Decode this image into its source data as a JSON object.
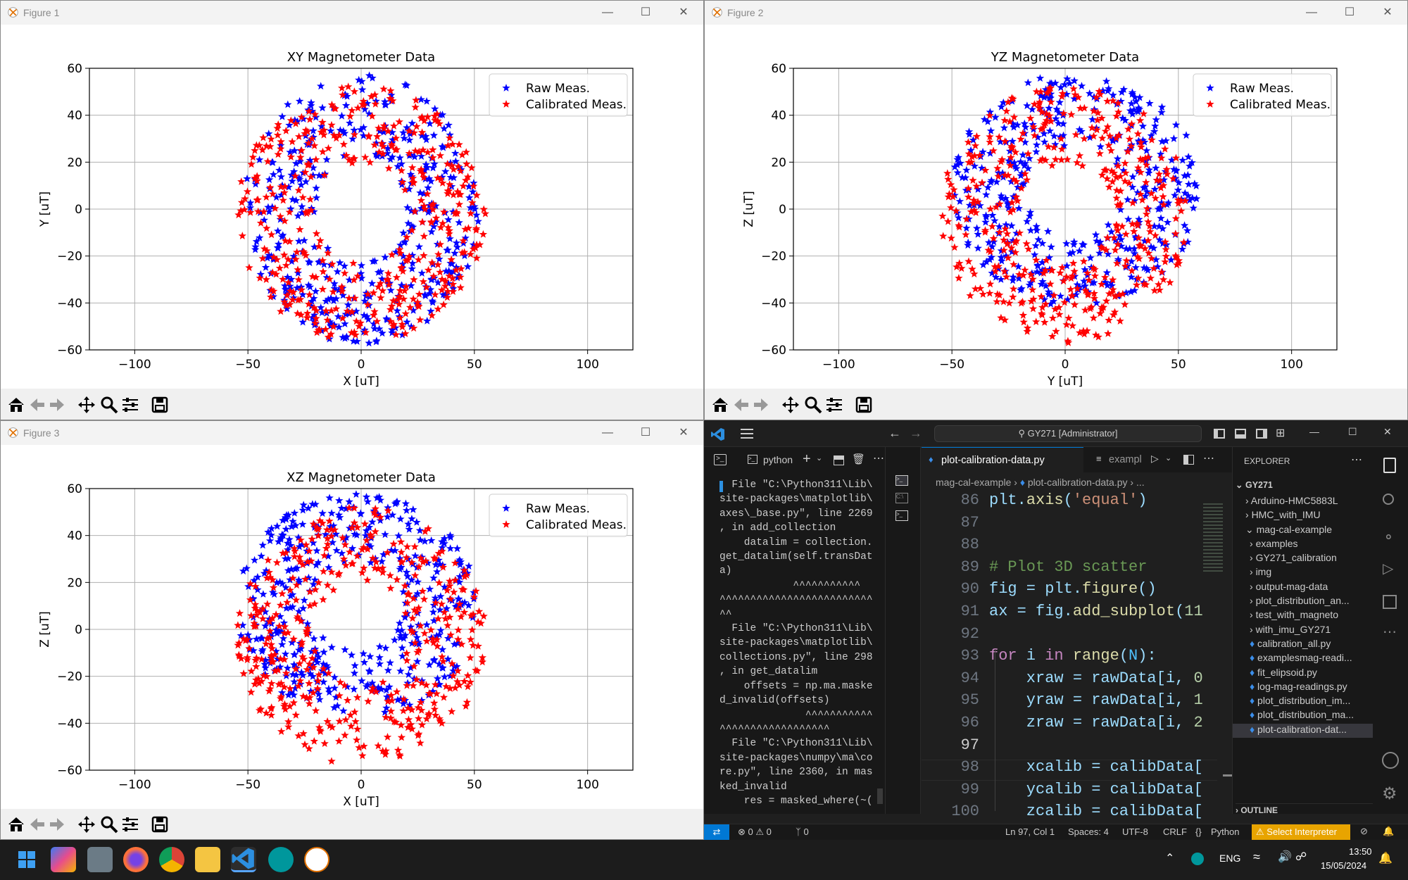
{
  "figures": [
    {
      "window_title": "Figure 1",
      "chart_data": {
        "type": "scatter",
        "title": "XY Magnetometer Data",
        "xlabel": "X [uT]",
        "ylabel": "Y [uT]",
        "xlim": [
          -120,
          120
        ],
        "ylim": [
          -60,
          60
        ],
        "xticks": [
          -100,
          -50,
          0,
          50,
          100
        ],
        "yticks": [
          60,
          40,
          20,
          0,
          -20,
          -40,
          -60
        ],
        "grid": true,
        "legend": "top-right",
        "series": [
          {
            "name": "Raw Meas.",
            "color": "#0000ff",
            "center": [
              0,
              0
            ],
            "radius": [
              52,
              58
            ]
          },
          {
            "name": "Calibrated Meas.",
            "color": "#ff0000",
            "center": [
              0,
              -2
            ],
            "radius": [
              55,
              55
            ]
          }
        ]
      }
    },
    {
      "window_title": "Figure 2",
      "chart_data": {
        "type": "scatter",
        "title": "YZ Magnetometer Data",
        "xlabel": "Y [uT]",
        "ylabel": "Z [uT]",
        "xlim": [
          -120,
          120
        ],
        "ylim": [
          -60,
          60
        ],
        "xticks": [
          -100,
          -50,
          0,
          50,
          100
        ],
        "yticks": [
          60,
          40,
          20,
          0,
          -20,
          -40,
          -60
        ],
        "grid": true,
        "legend": "top-right",
        "series": [
          {
            "name": "Raw Meas.",
            "color": "#0000ff",
            "center": [
              5,
              8
            ],
            "radius": [
              55,
              50
            ]
          },
          {
            "name": "Calibrated Meas.",
            "color": "#ff0000",
            "center": [
              0,
              -2
            ],
            "radius": [
              55,
              55
            ]
          }
        ]
      }
    },
    {
      "window_title": "Figure 3",
      "chart_data": {
        "type": "scatter",
        "title": "XZ Magnetometer Data",
        "xlabel": "X [uT]",
        "ylabel": "Z [uT]",
        "xlim": [
          -120,
          120
        ],
        "ylim": [
          -60,
          60
        ],
        "xticks": [
          -100,
          -50,
          0,
          50,
          100
        ],
        "yticks": [
          60,
          40,
          20,
          0,
          -20,
          -40,
          -60
        ],
        "grid": true,
        "legend": "top-right",
        "series": [
          {
            "name": "Raw Meas.",
            "color": "#0000ff",
            "center": [
              -2,
              10
            ],
            "radius": [
              53,
              48
            ]
          },
          {
            "name": "Calibrated Meas.",
            "color": "#ff0000",
            "center": [
              0,
              -3
            ],
            "radius": [
              55,
              55
            ]
          }
        ]
      }
    }
  ],
  "colors": {
    "raw": "#0000ff",
    "calib": "#ff0000",
    "vscode_accent": "#0078d4",
    "status_warn": "#e8a400"
  },
  "vscode": {
    "search": "GY271 [Administrator]",
    "terminal_tab": "python",
    "editor_tab_active": "plot-calibration-data.py",
    "editor_tab_other": "exampl",
    "breadcrumb": [
      "mag-cal-example",
      "plot-calibration-data.py",
      "..."
    ],
    "terminal_lines": [
      "  File \"C:\\Python311\\Lib\\",
      "site-packages\\matplotlib\\",
      "axes\\_base.py\", line 2269",
      ", in add_collection",
      "    datalim = collection.",
      "get_datalim(self.transDat",
      "a)",
      "            ^^^^^^^^^^^",
      "^^^^^^^^^^^^^^^^^^^^^^^^^",
      "^^",
      "  File \"C:\\Python311\\Lib\\",
      "site-packages\\matplotlib\\",
      "collections.py\", line 298",
      ", in get_datalim",
      "    offsets = np.ma.maske",
      "d_invalid(offsets)",
      "              ^^^^^^^^^^^",
      "^^^^^^^^^^^^^^^^^^",
      "  File \"C:\\Python311\\Lib\\",
      "site-packages\\numpy\\ma\\co",
      "re.py\", line 2360, in mas",
      "ked_invalid",
      "    res = masked_where(~("
    ],
    "code_lines": [
      {
        "n": "86",
        "code": "plt.axis('equal')"
      },
      {
        "n": "87",
        "code": ""
      },
      {
        "n": "88",
        "code": ""
      },
      {
        "n": "89",
        "code": "# Plot 3D scatter"
      },
      {
        "n": "90",
        "code": "fig = plt.figure()"
      },
      {
        "n": "91",
        "code": "ax = fig.add_subplot(11"
      },
      {
        "n": "92",
        "code": ""
      },
      {
        "n": "93",
        "code": "for i in range(N):"
      },
      {
        "n": "94",
        "code": "    xraw = rawData[i, 0"
      },
      {
        "n": "95",
        "code": "    yraw = rawData[i, 1"
      },
      {
        "n": "96",
        "code": "    zraw = rawData[i, 2"
      },
      {
        "n": "97",
        "code": ""
      },
      {
        "n": "98",
        "code": "    xcalib = calibData["
      },
      {
        "n": "99",
        "code": "    ycalib = calibData["
      },
      {
        "n": "100",
        "code": "    zcalib = calibData["
      }
    ],
    "explorer_title": "EXPLORER",
    "explorer_root": "GY271",
    "explorer_items": [
      {
        "label": "Arduino-HMC5883L",
        "kind": "folder",
        "depth": 1
      },
      {
        "label": "HMC_with_IMU",
        "kind": "folder",
        "depth": 1
      },
      {
        "label": "mag-cal-example",
        "kind": "folder-open",
        "depth": 1
      },
      {
        "label": "examples",
        "kind": "folder",
        "depth": 2
      },
      {
        "label": "GY271_calibration",
        "kind": "folder",
        "depth": 2
      },
      {
        "label": "img",
        "kind": "folder",
        "depth": 2
      },
      {
        "label": "output-mag-data",
        "kind": "folder",
        "depth": 2
      },
      {
        "label": "plot_distribution_an...",
        "kind": "folder",
        "depth": 2
      },
      {
        "label": "test_with_magneto",
        "kind": "folder",
        "depth": 2
      },
      {
        "label": "with_imu_GY271",
        "kind": "folder",
        "depth": 2
      },
      {
        "label": "calibration_all.py",
        "kind": "py",
        "depth": 2
      },
      {
        "label": "examplesmag-readi...",
        "kind": "py",
        "depth": 2
      },
      {
        "label": "fit_elipsoid.py",
        "kind": "py",
        "depth": 2
      },
      {
        "label": "log-mag-readings.py",
        "kind": "py",
        "depth": 2
      },
      {
        "label": "plot_distribution_im...",
        "kind": "py",
        "depth": 2
      },
      {
        "label": "plot_distribution_ma...",
        "kind": "py",
        "depth": 2
      },
      {
        "label": "plot-calibration-dat...",
        "kind": "py",
        "depth": 2,
        "selected": true
      }
    ],
    "outline": "OUTLINE",
    "status": {
      "errors": "0",
      "warnings": "0",
      "ports": "0",
      "position": "Ln 97, Col 1",
      "spaces": "Spaces: 4",
      "encoding": "UTF-8",
      "eol": "CRLF",
      "lang": "Python",
      "interpreter": "Select Interpreter"
    }
  },
  "taskbar": {
    "lang": "ENG",
    "time": "13:50",
    "date": "15/05/2024"
  }
}
